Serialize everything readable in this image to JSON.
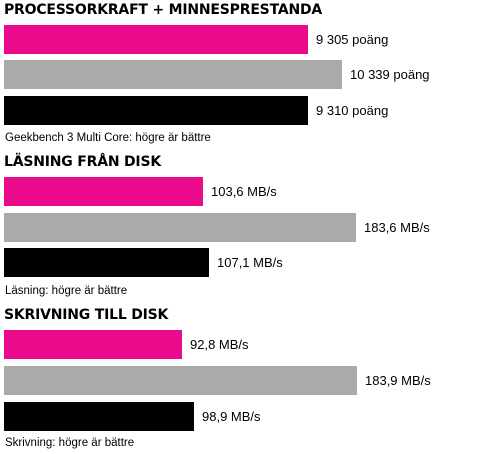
{
  "colors": {
    "magenta": "#ec0a8c",
    "gray": "#aaaaaa",
    "black": "#000000"
  },
  "chart_data": [
    {
      "type": "bar",
      "orientation": "horizontal",
      "title": "PROCESSORKRAFT + MINNESPRESTANDA",
      "categories": [
        "",
        "",
        ""
      ],
      "values": [
        9305,
        10339,
        9310
      ],
      "labels": [
        "9 305 poäng",
        "10 339 poäng",
        "9 310 poäng"
      ],
      "bar_colors": [
        "#ec0a8c",
        "#aaaaaa",
        "#000000"
      ],
      "xlim": [
        0,
        13500
      ],
      "note": "Geekbench 3 Multi Core: högre är bättre"
    },
    {
      "type": "bar",
      "orientation": "horizontal",
      "title": "LÄSNING FRÅN DISK",
      "categories": [
        "",
        "",
        ""
      ],
      "values": [
        103.6,
        183.6,
        107.1
      ],
      "labels": [
        "103,6 MB/s",
        "183,6 MB/s",
        "107,1 MB/s"
      ],
      "bar_colors": [
        "#ec0a8c",
        "#aaaaaa",
        "#000000"
      ],
      "xlim": [
        0,
        230
      ],
      "note": "Läsning: högre är bättre"
    },
    {
      "type": "bar",
      "orientation": "horizontal",
      "title": "SKRIVNING TILL DISK",
      "categories": [
        "",
        "",
        ""
      ],
      "values": [
        92.8,
        183.9,
        98.9
      ],
      "labels": [
        "92,8 MB/s",
        "183,9 MB/s",
        "98,9 MB/s"
      ],
      "bar_colors": [
        "#ec0a8c",
        "#aaaaaa",
        "#000000"
      ],
      "xlim": [
        0,
        230
      ],
      "note": "Skrivning: högre är bättre"
    }
  ]
}
